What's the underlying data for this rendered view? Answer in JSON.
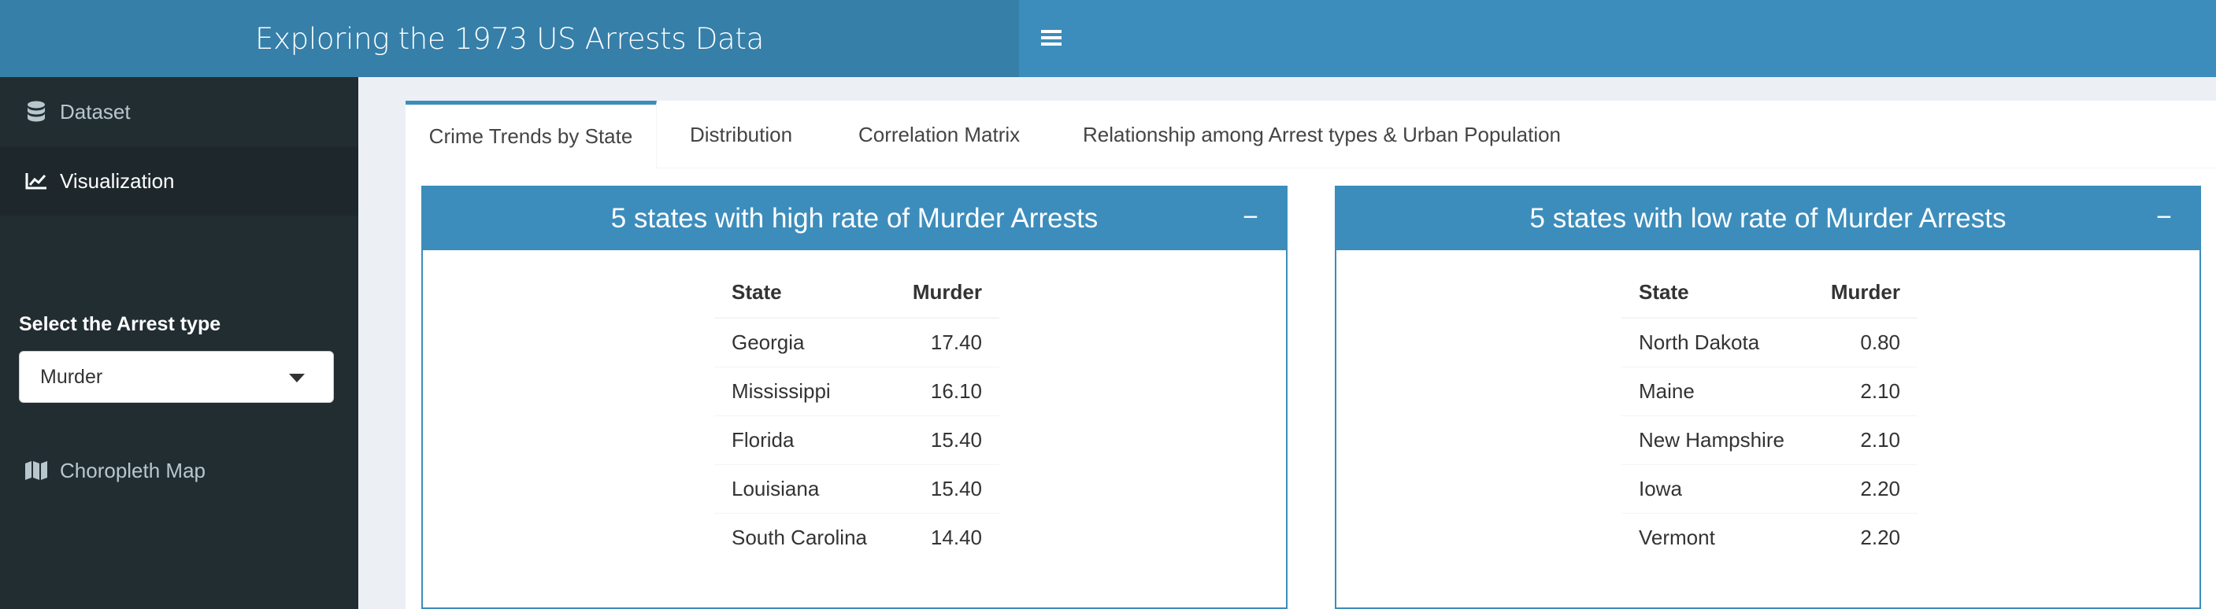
{
  "header": {
    "title": "Exploring the 1973 US Arrests Data",
    "menu_icon": "hamburger-icon"
  },
  "sidebar": {
    "items": [
      {
        "label": "Dataset",
        "icon": "database-icon"
      },
      {
        "label": "Visualization",
        "icon": "line-chart-icon"
      },
      {
        "label": "Choropleth Map",
        "icon": "map-icon"
      }
    ],
    "select_label": "Select the Arrest type",
    "select_value": "Murder"
  },
  "tabs": [
    {
      "label": "Crime Trends by State"
    },
    {
      "label": "Distribution"
    },
    {
      "label": "Correlation Matrix"
    },
    {
      "label": "Relationship among Arrest types & Urban Population"
    }
  ],
  "high_box": {
    "title": "5 states with high rate of Murder Arrests",
    "headers": [
      "State",
      "Murder"
    ],
    "rows": [
      [
        "Georgia",
        "17.40"
      ],
      [
        "Mississippi",
        "16.10"
      ],
      [
        "Florida",
        "15.40"
      ],
      [
        "Louisiana",
        "15.40"
      ],
      [
        "South Carolina",
        "14.40"
      ]
    ]
  },
  "low_box": {
    "title": "5 states with low rate of Murder Arrests",
    "headers": [
      "State",
      "Murder"
    ],
    "rows": [
      [
        "North Dakota",
        "0.80"
      ],
      [
        "Maine",
        "2.10"
      ],
      [
        "New Hampshire",
        "2.10"
      ],
      [
        "Iowa",
        "2.20"
      ],
      [
        "Vermont",
        "2.20"
      ]
    ]
  },
  "colors": {
    "primary": "#3c8dbc",
    "logo_bg": "#367fa9",
    "sidebar_bg": "#222d32"
  }
}
